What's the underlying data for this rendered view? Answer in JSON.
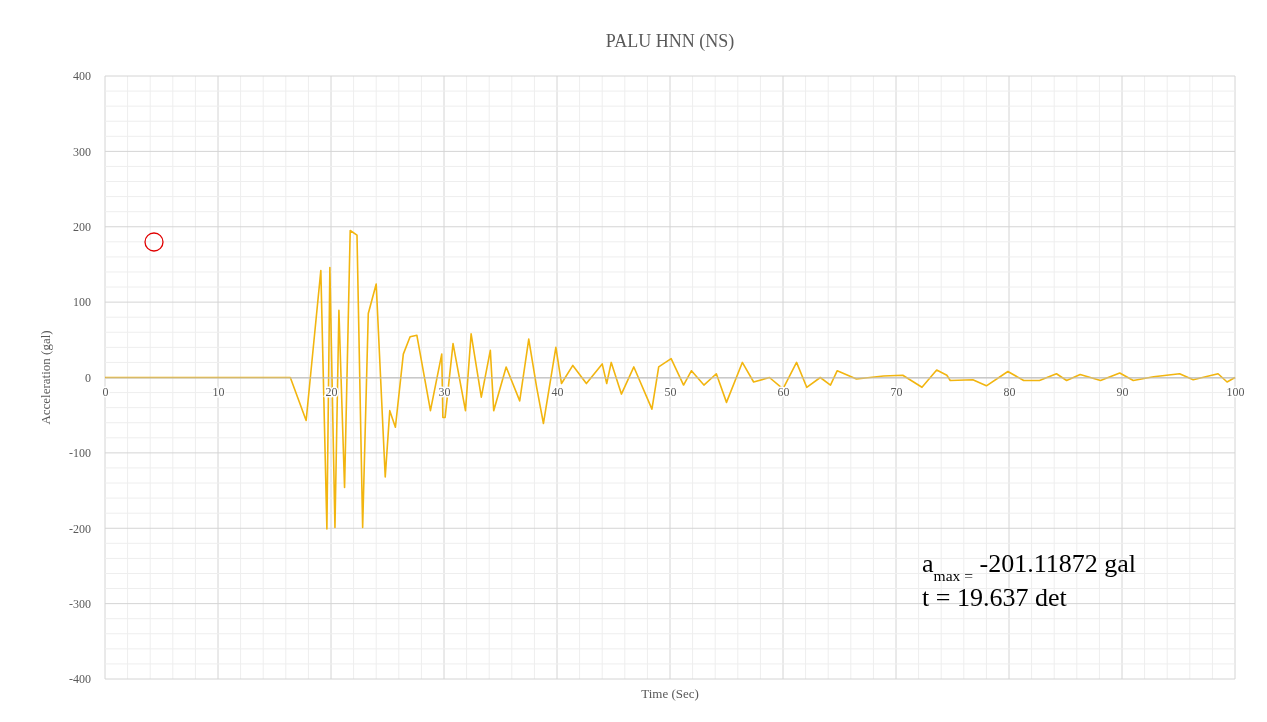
{
  "chart_data": {
    "type": "line",
    "title": "PALU HNN (NS)",
    "xlabel": "Time (Sec)",
    "ylabel": "Acceleration (gal)",
    "annotations": [
      "a$_{max =}$ -201.11872 gal",
      "t = 19.637 det"
    ],
    "xlim": [
      0,
      100
    ],
    "xticks": [
      0,
      10,
      20,
      30,
      40,
      50,
      60,
      70,
      80,
      90,
      100
    ],
    "ylim": [
      -400,
      400
    ],
    "yticks": [
      -400,
      -300,
      -200,
      -100,
      0,
      100,
      200,
      300,
      400
    ],
    "grid": true,
    "marker": "none",
    "line_style": "solid",
    "series": [
      {
        "color": "#f2b50f",
        "x": [
          0,
          16.4,
          17.8,
          19.1,
          19.637,
          19.9,
          20.35,
          20.7,
          21.2,
          21.7,
          22.3,
          22.8,
          23.3,
          24.0,
          24.8,
          25.2,
          25.7,
          26.4,
          27.0,
          27.6,
          28.8,
          29.8,
          29.9,
          30.1,
          30.8,
          31.9,
          32.4,
          33.3,
          34.1,
          34.4,
          35.5,
          36.7,
          37.5,
          38.2,
          38.8,
          39.9,
          40.4,
          41.4,
          42.6,
          44.0,
          44.4,
          44.8,
          45.7,
          46.8,
          48.4,
          49.0,
          50.1,
          51.2,
          51.9,
          53.0,
          54.1,
          55.0,
          56.4,
          57.4,
          58.8,
          60.0,
          61.2,
          62.1,
          63.3,
          64.2,
          64.8,
          66.5,
          68.9,
          70.6,
          72.3,
          73.6,
          74.5,
          74.8,
          76.8,
          78.0,
          79.9,
          81.3,
          82.7,
          84.2,
          85.1,
          86.3,
          88.1,
          89.8,
          91.0,
          92.8,
          95.1,
          96.3,
          98.5,
          99.3,
          100
        ],
        "values": [
          0,
          0,
          -57,
          142,
          -201,
          146,
          -199,
          89,
          -146,
          195,
          189,
          -199,
          85,
          124,
          -132,
          -44,
          -66,
          31,
          54,
          56,
          -44,
          31,
          -53,
          -53,
          45,
          -44,
          58,
          -26,
          36,
          -44,
          14,
          -31,
          51,
          -13,
          -61,
          40,
          -8,
          16,
          -8,
          18,
          -8,
          20,
          -22,
          14,
          -42,
          14,
          25,
          -10,
          9,
          -10,
          5,
          -33,
          20,
          -6,
          0,
          -15,
          20,
          -13,
          0,
          -10,
          9,
          -2,
          2,
          3,
          -13,
          10,
          3,
          -4,
          -3,
          -11,
          8,
          -4,
          -4,
          5,
          -4,
          4,
          -4,
          6,
          -4,
          1,
          5,
          -3,
          5,
          -6,
          0
        ]
      }
    ]
  }
}
